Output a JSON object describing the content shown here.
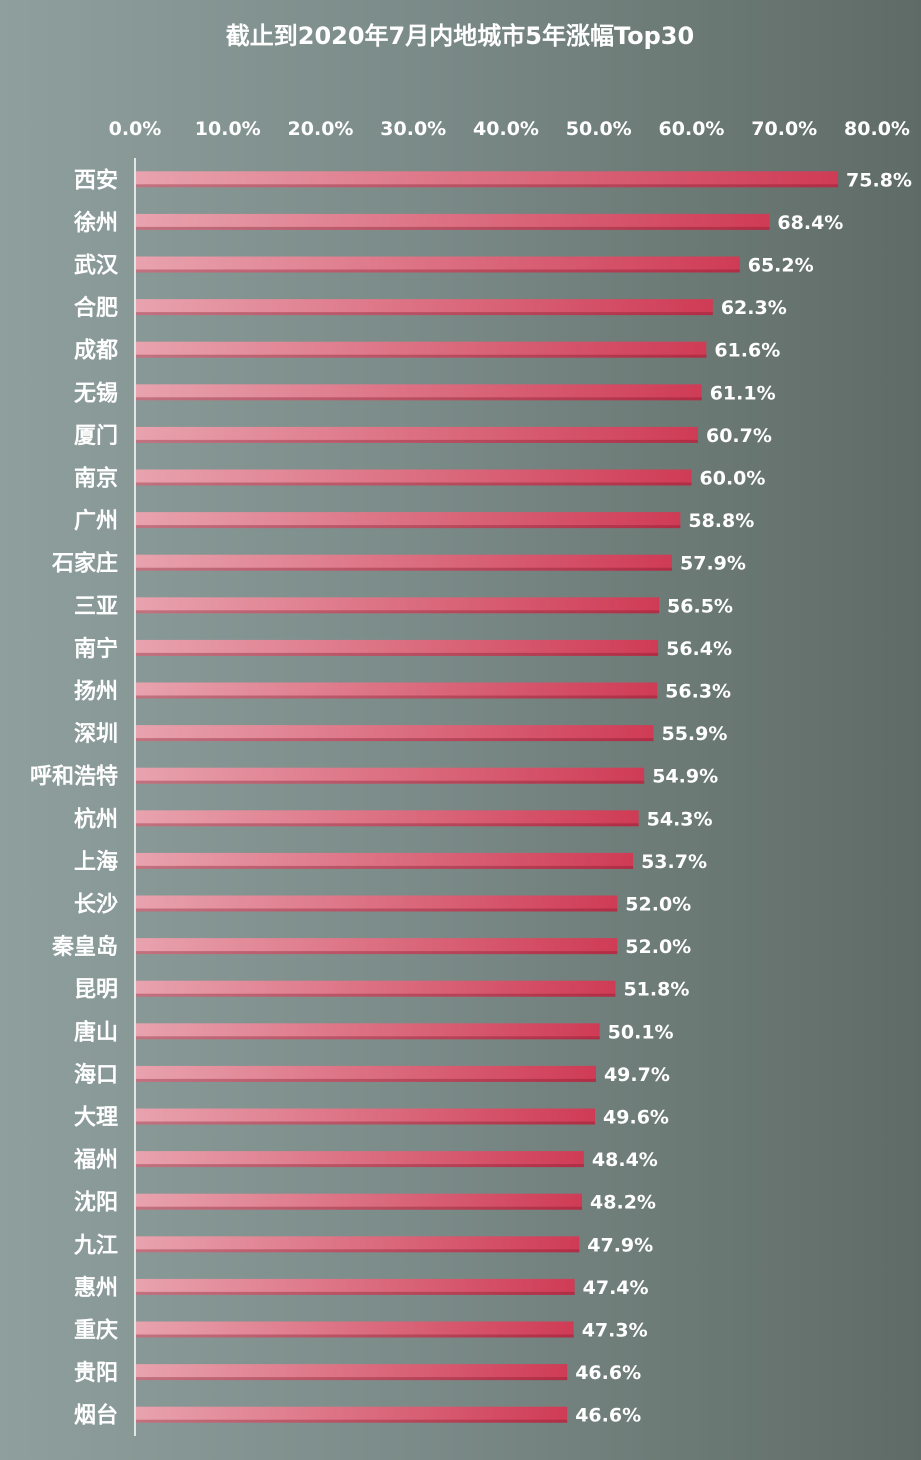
{
  "chart_data": {
    "type": "bar",
    "orientation": "horizontal",
    "title": "截止到2020年7月内地城市5年涨幅Top30",
    "xlim": [
      0,
      80
    ],
    "x_ticks": [
      "0.0%",
      "10.0%",
      "20.0%",
      "30.0%",
      "40.0%",
      "50.0%",
      "60.0%",
      "70.0%",
      "80.0%"
    ],
    "x_tick_values": [
      0,
      10,
      20,
      30,
      40,
      50,
      60,
      70,
      80
    ],
    "x_axis_position": "top",
    "grid": false,
    "categories": [
      "西安",
      "徐州",
      "武汉",
      "合肥",
      "成都",
      "无锡",
      "厦门",
      "南京",
      "广州",
      "石家庄",
      "三亚",
      "南宁",
      "扬州",
      "深圳",
      "呼和浩特",
      "杭州",
      "上海",
      "长沙",
      "秦皇岛",
      "昆明",
      "唐山",
      "海口",
      "大理",
      "福州",
      "沈阳",
      "九江",
      "惠州",
      "重庆",
      "贵阳",
      "烟台"
    ],
    "values": [
      75.8,
      68.4,
      65.2,
      62.3,
      61.6,
      61.1,
      60.7,
      60.0,
      58.8,
      57.9,
      56.5,
      56.4,
      56.3,
      55.9,
      54.9,
      54.3,
      53.7,
      52.0,
      52.0,
      51.8,
      50.1,
      49.7,
      49.6,
      48.4,
      48.2,
      47.9,
      47.4,
      47.3,
      46.6,
      46.6
    ],
    "value_labels": [
      "75.8%",
      "68.4%",
      "65.2%",
      "62.3%",
      "61.6%",
      "61.1%",
      "60.7%",
      "60.0%",
      "58.8%",
      "57.9%",
      "56.5%",
      "56.4%",
      "56.3%",
      "55.9%",
      "54.9%",
      "54.3%",
      "53.7%",
      "52.0%",
      "52.0%",
      "51.8%",
      "50.1%",
      "49.7%",
      "49.6%",
      "48.4%",
      "48.2%",
      "47.9%",
      "47.4%",
      "47.3%",
      "46.6%",
      "46.6%"
    ],
    "colors": {
      "bar_start": "#e8a3ae",
      "bar_end": "#cf3b55",
      "text": "#ffffff",
      "axis": "#ffffff"
    }
  }
}
